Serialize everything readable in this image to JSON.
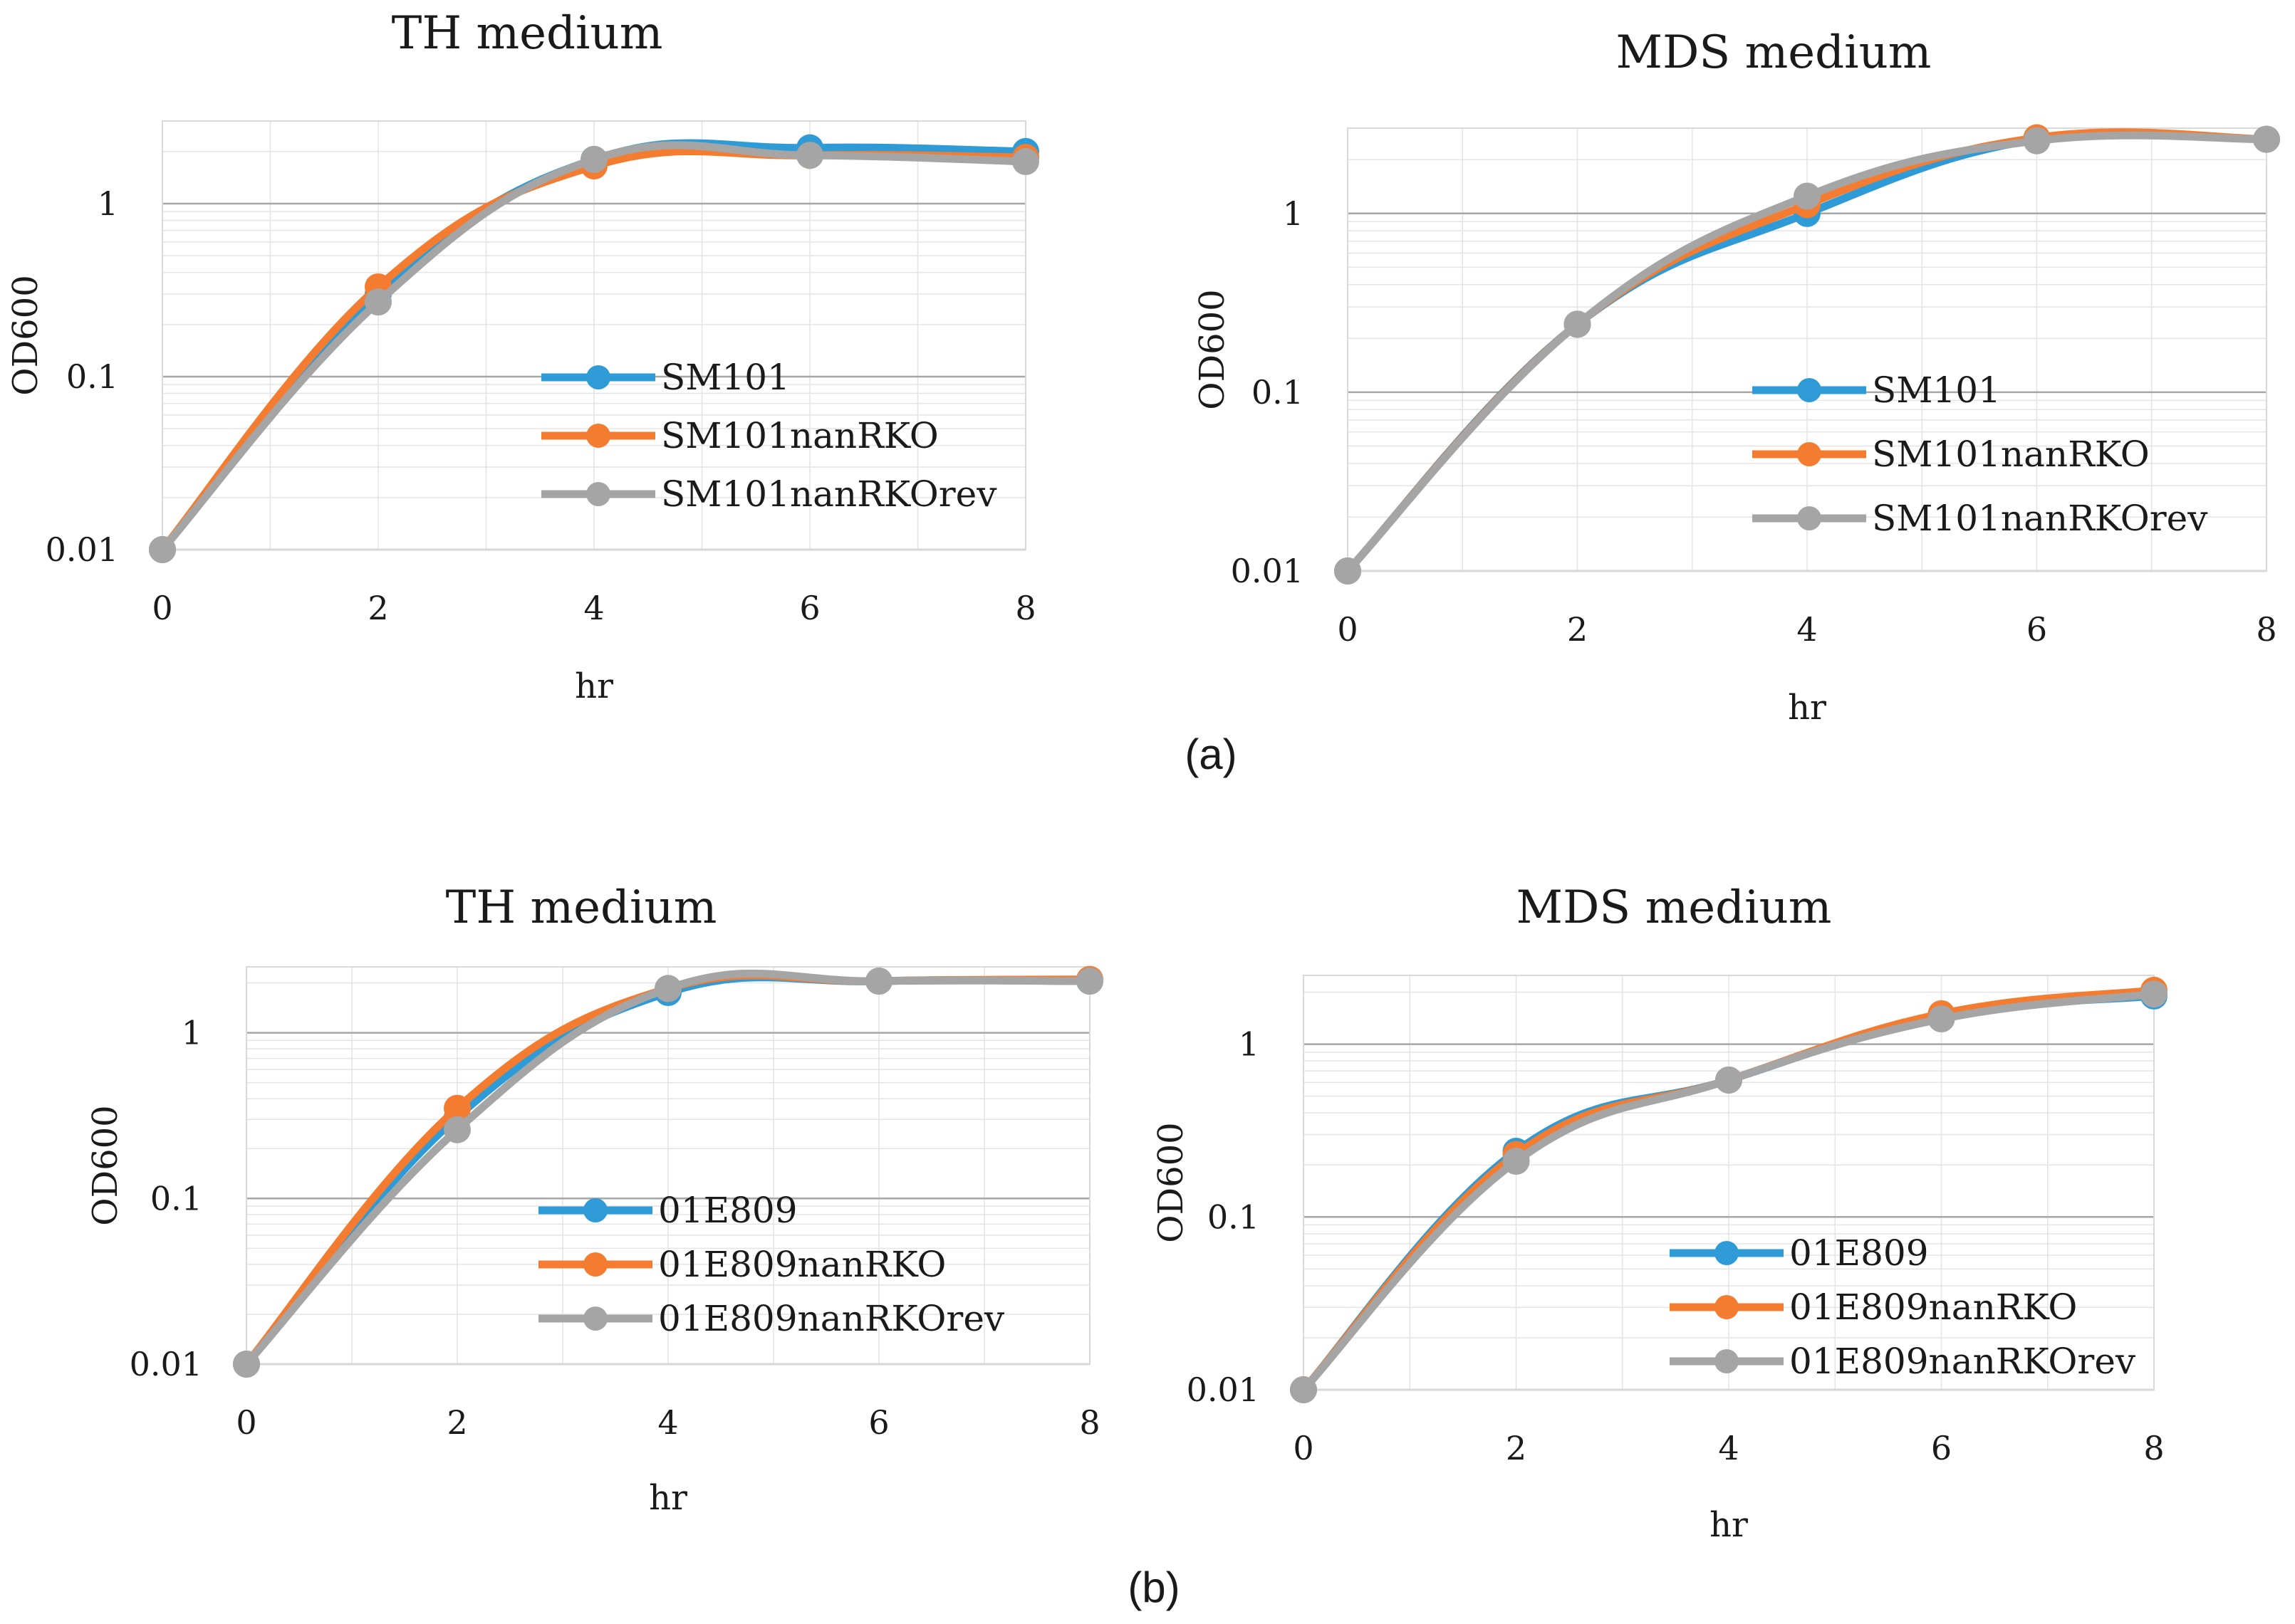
{
  "figure": {
    "panel_labels": [
      "(a)",
      "(b)"
    ]
  },
  "chart_data": [
    {
      "type": "line",
      "title": "TH medium",
      "xlabel": "hr",
      "ylabel": "OD600",
      "yscale": "log",
      "ylim": [
        0.01,
        3
      ],
      "xlim": [
        0,
        8
      ],
      "x": [
        0,
        2,
        4,
        6,
        8
      ],
      "xticks": [
        "0",
        "2",
        "4",
        "6",
        "8"
      ],
      "yticks": [
        "0.01",
        "0.1",
        "1"
      ],
      "legend_position": "lower-right",
      "series": [
        {
          "name": "SM101",
          "color": "#2e9bd6",
          "values": [
            0.01,
            0.3,
            1.8,
            2.1,
            2.0
          ]
        },
        {
          "name": "SM101nanRKO",
          "color": "#f47c30",
          "values": [
            0.01,
            0.33,
            1.65,
            1.9,
            1.85
          ]
        },
        {
          "name": "SM101nanRKOrev",
          "color": "#a5a5a5",
          "values": [
            0.01,
            0.27,
            1.8,
            1.9,
            1.75
          ]
        }
      ]
    },
    {
      "type": "line",
      "title": "MDS medium",
      "xlabel": "hr",
      "ylabel": "OD600",
      "yscale": "log",
      "ylim": [
        0.01,
        3
      ],
      "xlim": [
        0,
        8
      ],
      "x": [
        0,
        2,
        4,
        6,
        8
      ],
      "xticks": [
        "0",
        "2",
        "4",
        "6",
        "8"
      ],
      "yticks": [
        "0.01",
        "0.1",
        "1"
      ],
      "legend_position": "lower-right",
      "series": [
        {
          "name": "SM101",
          "color": "#2e9bd6",
          "values": [
            0.01,
            0.24,
            1.0,
            2.6,
            2.6
          ]
        },
        {
          "name": "SM101nanRKO",
          "color": "#f47c30",
          "values": [
            0.01,
            0.24,
            1.12,
            2.65,
            2.6
          ]
        },
        {
          "name": "SM101nanRKOrev",
          "color": "#a5a5a5",
          "values": [
            0.01,
            0.24,
            1.25,
            2.55,
            2.6
          ]
        }
      ]
    },
    {
      "type": "line",
      "title": "TH medium",
      "xlabel": "hr",
      "ylabel": "OD600",
      "yscale": "log",
      "ylim": [
        0.01,
        2.5
      ],
      "xlim": [
        0,
        8
      ],
      "x": [
        0,
        2,
        4,
        6,
        8
      ],
      "xticks": [
        "0",
        "2",
        "4",
        "6",
        "8"
      ],
      "yticks": [
        "0.01",
        "0.1",
        "1"
      ],
      "legend_position": "lower-right",
      "series": [
        {
          "name": "01E809",
          "color": "#2e9bd6",
          "values": [
            0.01,
            0.31,
            1.75,
            2.05,
            2.05
          ]
        },
        {
          "name": "01E809nanRKO",
          "color": "#f47c30",
          "values": [
            0.01,
            0.35,
            1.85,
            2.05,
            2.1
          ]
        },
        {
          "name": "01E809nanRKOrev",
          "color": "#a5a5a5",
          "values": [
            0.01,
            0.26,
            1.85,
            2.05,
            2.05
          ]
        }
      ]
    },
    {
      "type": "line",
      "title": "MDS medium",
      "xlabel": "hr",
      "ylabel": "OD600",
      "yscale": "log",
      "ylim": [
        0.01,
        2.5
      ],
      "xlim": [
        0,
        8
      ],
      "x": [
        0,
        2,
        4,
        6,
        8
      ],
      "xticks": [
        "0",
        "2",
        "4",
        "6",
        "8"
      ],
      "yticks": [
        "0.01",
        "0.1",
        "1"
      ],
      "legend_position": "lower-right",
      "series": [
        {
          "name": "01E809",
          "color": "#2e9bd6",
          "values": [
            0.01,
            0.24,
            0.62,
            1.45,
            1.9
          ]
        },
        {
          "name": "01E809nanRKO",
          "color": "#f47c30",
          "values": [
            0.01,
            0.23,
            0.62,
            1.5,
            2.05
          ]
        },
        {
          "name": "01E809nanRKOrev",
          "color": "#a5a5a5",
          "values": [
            0.01,
            0.21,
            0.62,
            1.4,
            1.95
          ]
        }
      ]
    }
  ]
}
